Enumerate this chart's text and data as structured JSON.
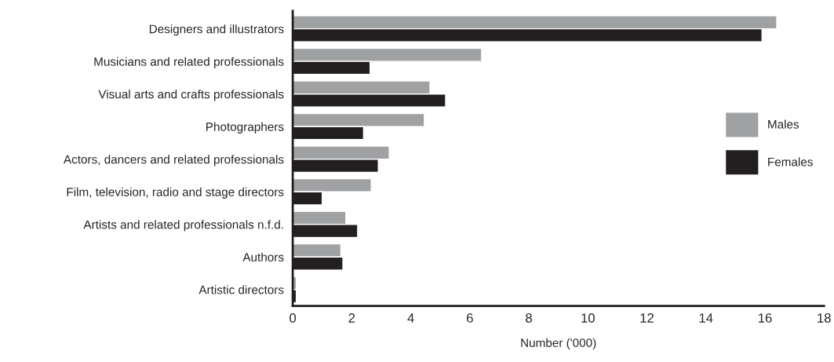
{
  "chart_data": {
    "type": "bar",
    "orientation": "horizontal",
    "xlabel": "Number ('000)",
    "categories": [
      "Designers and illustrators",
      "Musicians and related professionals",
      "Visual arts and crafts professionals",
      "Photographers",
      "Actors, dancers and related professionals",
      "Film, television, radio and stage directors",
      "Artists and related professionals n.f.d.",
      "Authors",
      "Artistic directors"
    ],
    "series": [
      {
        "name": "Males",
        "color": "#a0a1a3",
        "values": [
          16.4,
          6.4,
          4.65,
          4.46,
          3.27,
          2.66,
          1.8,
          1.63,
          0.12
        ]
      },
      {
        "name": "Females",
        "color": "#231f20",
        "values": [
          15.9,
          2.62,
          5.18,
          2.4,
          2.9,
          1.0,
          2.2,
          1.7,
          0.12
        ]
      }
    ],
    "xlim": [
      0,
      18
    ],
    "xticks": [
      0,
      2,
      4,
      6,
      8,
      10,
      12,
      14,
      16,
      18
    ],
    "grid": false,
    "legend": "right"
  }
}
